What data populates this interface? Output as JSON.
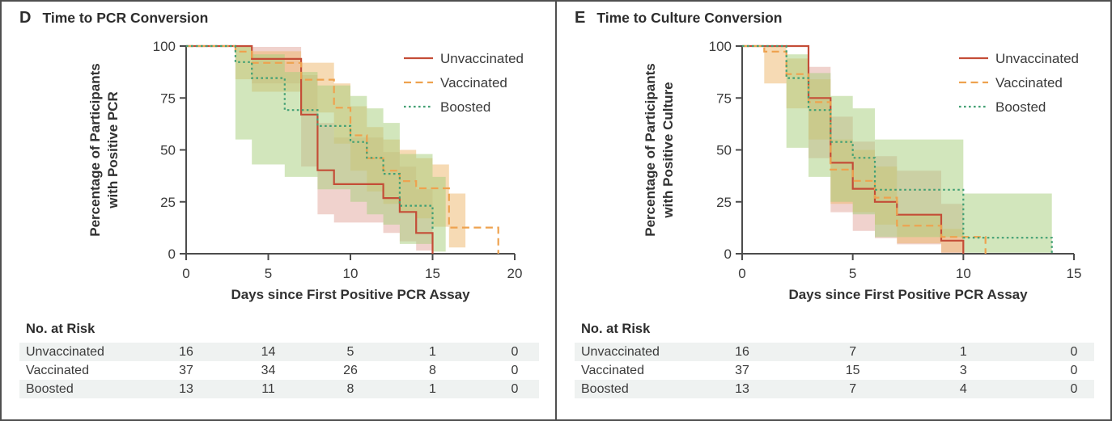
{
  "figure": {
    "panels": [
      {
        "label": "D",
        "title": "Time to PCR Conversion",
        "risk_table": {
          "title": "No. at Risk",
          "days": [
            0,
            5,
            10,
            15,
            20
          ],
          "rows": [
            {
              "label": "Unvaccinated",
              "values": [
                "16",
                "14",
                "5",
                "1",
                "0"
              ]
            },
            {
              "label": "Vaccinated",
              "values": [
                "37",
                "34",
                "26",
                "8",
                "0"
              ]
            },
            {
              "label": "Boosted",
              "values": [
                "13",
                "11",
                "8",
                "1",
                "0"
              ]
            }
          ]
        }
      },
      {
        "label": "E",
        "title": "Time to Culture Conversion",
        "risk_table": {
          "title": "No. at Risk",
          "days": [
            0,
            5,
            10,
            15
          ],
          "rows": [
            {
              "label": "Unvaccinated",
              "values": [
                "16",
                "7",
                "1",
                "0"
              ]
            },
            {
              "label": "Vaccinated",
              "values": [
                "37",
                "15",
                "3",
                "0"
              ]
            },
            {
              "label": "Boosted",
              "values": [
                "13",
                "7",
                "4",
                "0"
              ]
            }
          ]
        }
      }
    ]
  },
  "chart_data": [
    {
      "type": "line",
      "subtype": "kaplan_meier_step",
      "title": "Time to PCR Conversion",
      "xlabel": "Days since First Positive PCR Assay",
      "ylabel_lines": [
        "Percentage of Participants",
        "with Positive PCR"
      ],
      "xlim": [
        0,
        20
      ],
      "ylim": [
        0,
        100
      ],
      "x_ticks": [
        0,
        5,
        10,
        15,
        20
      ],
      "y_ticks": [
        0,
        25,
        50,
        75,
        100
      ],
      "grid": false,
      "legend_position": "top-right",
      "series": [
        {
          "name": "Unvaccinated",
          "color": "#c44d37",
          "dash": "solid",
          "band_color": "#da8f82",
          "band_opacity": 0.4,
          "steps": [
            [
              0,
              100
            ],
            [
              4,
              93.8
            ],
            [
              7,
              67
            ],
            [
              8,
              40.2
            ],
            [
              9,
              33.5
            ],
            [
              12,
              26.8
            ],
            [
              13,
              20.1
            ],
            [
              14,
              10
            ],
            [
              15,
              0
            ]
          ],
          "ci": [
            [
              4,
              82,
              99.6
            ],
            [
              7,
              42,
              86
            ],
            [
              8,
              19,
              63
            ],
            [
              9,
              15,
              56
            ],
            [
              12,
              10,
              49
            ],
            [
              13,
              6,
              42
            ],
            [
              14,
              1.5,
              31
            ],
            [
              15,
              0,
              0
            ]
          ]
        },
        {
          "name": "Vaccinated",
          "color": "#eea24f",
          "dash": "dashed",
          "band_color": "#edb96f",
          "band_opacity": 0.52,
          "steps": [
            [
              0,
              100
            ],
            [
              3,
              97.3
            ],
            [
              4,
              91.9
            ],
            [
              7,
              83.8
            ],
            [
              9,
              70.3
            ],
            [
              10,
              57
            ],
            [
              11,
              46
            ],
            [
              12,
              40
            ],
            [
              13,
              35
            ],
            [
              14,
              31.5
            ],
            [
              16,
              12.6
            ],
            [
              19,
              0
            ]
          ],
          "ci": [
            [
              3,
              84,
              99.6
            ],
            [
              4,
              78,
              97.5
            ],
            [
              7,
              68,
              92
            ],
            [
              9,
              53,
              82
            ],
            [
              10,
              40,
              71
            ],
            [
              11,
              30,
              61
            ],
            [
              12,
              24,
              55
            ],
            [
              13,
              20,
              50
            ],
            [
              14,
              17,
              46
            ],
            [
              15,
              13,
              43
            ],
            [
              16,
              3,
              29
            ],
            [
              17,
              12.6,
              12.6
            ]
          ]
        },
        {
          "name": "Boosted",
          "color": "#43a074",
          "dash": "dotted",
          "band_color": "#a9cf7f",
          "band_opacity": 0.52,
          "steps": [
            [
              0,
              100
            ],
            [
              3,
              92.3
            ],
            [
              4,
              84.6
            ],
            [
              6,
              69.2
            ],
            [
              8,
              61.5
            ],
            [
              10,
              53.8
            ],
            [
              11,
              46.2
            ],
            [
              12,
              38.5
            ],
            [
              13,
              23.1
            ],
            [
              15,
              11.5
            ]
          ],
          "ci": [
            [
              3,
              55,
              99.6
            ],
            [
              4,
              43,
              96
            ],
            [
              6,
              37,
              87.5
            ],
            [
              8,
              31,
              81
            ],
            [
              10,
              25,
              76
            ],
            [
              11,
              19,
              70
            ],
            [
              12,
              14,
              63
            ],
            [
              13,
              4.7,
              48
            ],
            [
              15,
              1,
              37
            ],
            [
              15.8,
              11.5,
              11.5
            ]
          ]
        }
      ]
    },
    {
      "type": "line",
      "subtype": "kaplan_meier_step",
      "title": "Time to Culture Conversion",
      "xlabel": "Days since First Positive PCR Assay",
      "ylabel_lines": [
        "Percentage of Participants",
        "with Positive Culture"
      ],
      "xlim": [
        0,
        15
      ],
      "ylim": [
        0,
        100
      ],
      "x_ticks": [
        0,
        5,
        10,
        15
      ],
      "y_ticks": [
        0,
        25,
        50,
        75,
        100
      ],
      "grid": false,
      "legend_position": "top-right",
      "series": [
        {
          "name": "Unvaccinated",
          "color": "#c44d37",
          "dash": "solid",
          "band_color": "#da8f82",
          "band_opacity": 0.4,
          "steps": [
            [
              0,
              100
            ],
            [
              3,
              75
            ],
            [
              4,
              43.8
            ],
            [
              5,
              31.3
            ],
            [
              6,
              25
            ],
            [
              7,
              18.8
            ],
            [
              9,
              6.3
            ],
            [
              10,
              0
            ]
          ],
          "ci": [
            [
              3,
              46,
              90
            ],
            [
              4,
              20,
              66
            ],
            [
              5,
              11,
              54
            ],
            [
              6,
              7.5,
              47
            ],
            [
              7,
              4.5,
              40
            ],
            [
              9,
              0.4,
              24
            ],
            [
              10,
              0,
              0
            ]
          ]
        },
        {
          "name": "Vaccinated",
          "color": "#eea24f",
          "dash": "dashed",
          "band_color": "#edb96f",
          "band_opacity": 0.52,
          "steps": [
            [
              0,
              100
            ],
            [
              1,
              97.3
            ],
            [
              2,
              86.5
            ],
            [
              3,
              73
            ],
            [
              4,
              40.5
            ],
            [
              5,
              35.1
            ],
            [
              6,
              27
            ],
            [
              7,
              13.5
            ],
            [
              9,
              8.1
            ],
            [
              11,
              0
            ]
          ],
          "ci": [
            [
              1,
              82,
              99.6
            ],
            [
              2,
              70,
              94
            ],
            [
              3,
              55,
              84
            ],
            [
              4,
              24,
              55
            ],
            [
              5,
              20,
              50
            ],
            [
              6,
              14,
              42
            ],
            [
              7,
              5,
              19
            ],
            [
              9,
              0.6,
              12
            ],
            [
              10,
              8.1,
              8.1
            ]
          ]
        },
        {
          "name": "Boosted",
          "color": "#43a074",
          "dash": "dotted",
          "band_color": "#a9cf7f",
          "band_opacity": 0.52,
          "steps": [
            [
              0,
              100
            ],
            [
              2,
              84.6
            ],
            [
              3,
              69.2
            ],
            [
              4,
              53.8
            ],
            [
              5,
              46.2
            ],
            [
              6,
              30.8
            ],
            [
              10,
              7.7
            ],
            [
              14,
              0
            ]
          ],
          "ci": [
            [
              2,
              51,
              96
            ],
            [
              3,
              37,
              87
            ],
            [
              4,
              25,
              76
            ],
            [
              5,
              19,
              70
            ],
            [
              6,
              8,
              55
            ],
            [
              10,
              0.5,
              29
            ],
            [
              14,
              0,
              0
            ]
          ]
        }
      ]
    }
  ]
}
